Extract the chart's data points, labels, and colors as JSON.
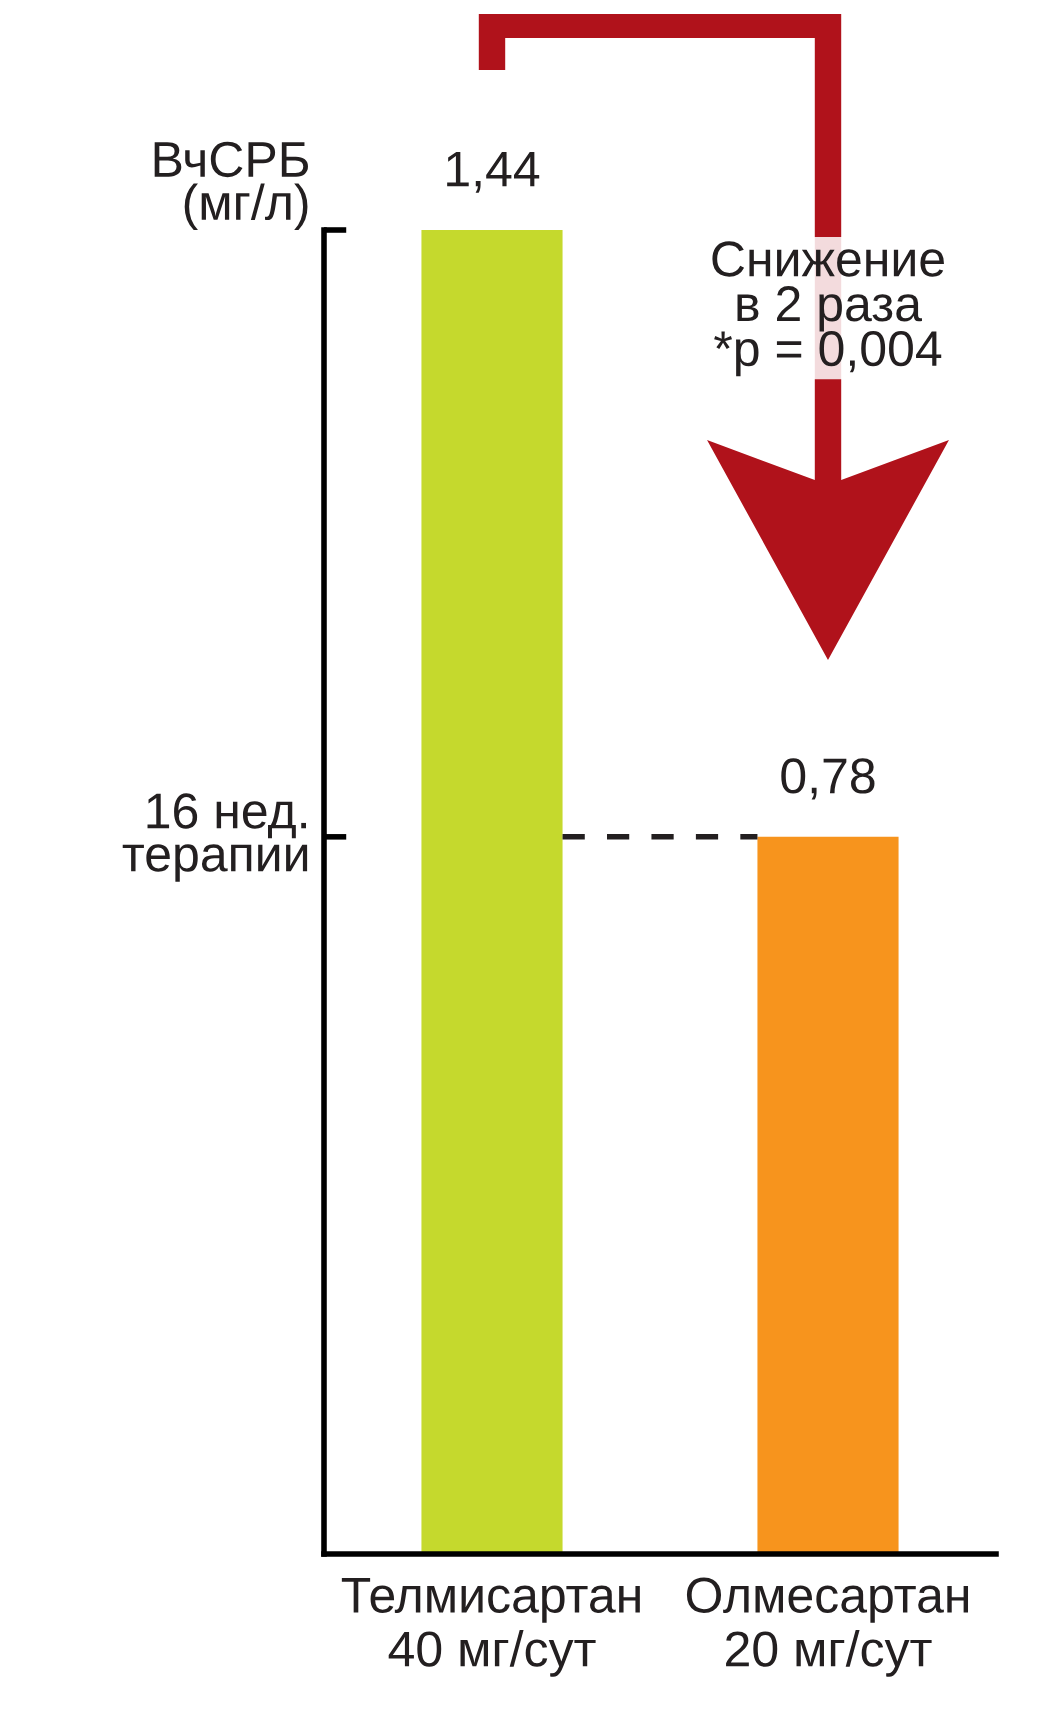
{
  "chart_data": {
    "type": "bar",
    "categories": [
      "Телмисартан\n40 мг/сут",
      "Олмесартан\n20 мг/сут"
    ],
    "values": [
      1.44,
      0.78
    ],
    "colors": [
      "#c5d92d",
      "#f7941d"
    ],
    "value_labels": [
      "1,44",
      "0,78"
    ],
    "ylabel": "ВчСРБ\n(мг/л)",
    "ylim": [
      0,
      1.44
    ],
    "yticks": [
      {
        "value": 1.44,
        "label": null
      },
      {
        "value": 0.78,
        "label": null
      }
    ],
    "ref_lines": [
      {
        "axis": "y",
        "value": 0.78,
        "label": "16 нед.\nтерапии",
        "color": "#231f20",
        "line_style": "dashed"
      }
    ],
    "annotations": [
      "Снижение\nв 2 раза\n*p = 0,004"
    ],
    "grid": false,
    "legend": false
  }
}
